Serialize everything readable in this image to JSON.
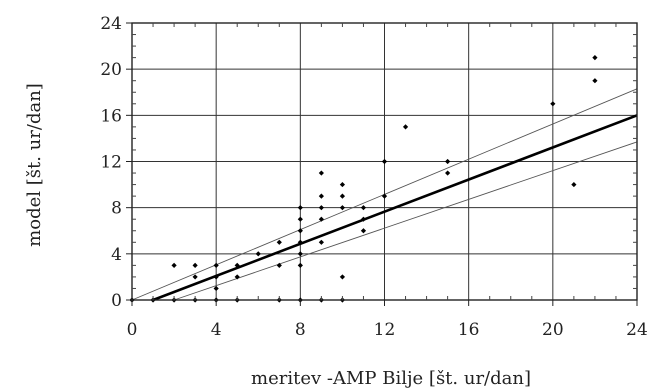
{
  "chart_data": {
    "type": "scatter",
    "xlabel": "meritev -AMP Bilje [št. ur/dan]",
    "ylabel": "model [št. ur/dan]",
    "xlim": [
      0,
      24
    ],
    "ylim": [
      0,
      24
    ],
    "x_ticks": [
      "0",
      "4",
      "8",
      "12",
      "16",
      "20",
      "24"
    ],
    "y_ticks": [
      "0",
      "4",
      "8",
      "12",
      "16",
      "20",
      "24"
    ],
    "grid": true,
    "points": [
      {
        "x": 0,
        "y": 0
      },
      {
        "x": 1,
        "y": 0
      },
      {
        "x": 2,
        "y": 0
      },
      {
        "x": 2,
        "y": 3
      },
      {
        "x": 3,
        "y": 0
      },
      {
        "x": 3,
        "y": 2
      },
      {
        "x": 3,
        "y": 3
      },
      {
        "x": 4,
        "y": 0
      },
      {
        "x": 4,
        "y": 1
      },
      {
        "x": 4,
        "y": 2
      },
      {
        "x": 4,
        "y": 3
      },
      {
        "x": 5,
        "y": 0
      },
      {
        "x": 5,
        "y": 2
      },
      {
        "x": 5,
        "y": 3
      },
      {
        "x": 6,
        "y": 4
      },
      {
        "x": 7,
        "y": 0
      },
      {
        "x": 7,
        "y": 3
      },
      {
        "x": 7,
        "y": 5
      },
      {
        "x": 8,
        "y": 0
      },
      {
        "x": 8,
        "y": 3
      },
      {
        "x": 8,
        "y": 4
      },
      {
        "x": 8,
        "y": 5
      },
      {
        "x": 8,
        "y": 6
      },
      {
        "x": 8,
        "y": 7
      },
      {
        "x": 8,
        "y": 8
      },
      {
        "x": 9,
        "y": 0
      },
      {
        "x": 9,
        "y": 5
      },
      {
        "x": 9,
        "y": 7
      },
      {
        "x": 9,
        "y": 8
      },
      {
        "x": 9,
        "y": 9
      },
      {
        "x": 9,
        "y": 11
      },
      {
        "x": 10,
        "y": 0
      },
      {
        "x": 10,
        "y": 2
      },
      {
        "x": 10,
        "y": 8
      },
      {
        "x": 10,
        "y": 9
      },
      {
        "x": 10,
        "y": 10
      },
      {
        "x": 11,
        "y": 6
      },
      {
        "x": 11,
        "y": 7
      },
      {
        "x": 11,
        "y": 8
      },
      {
        "x": 12,
        "y": 9
      },
      {
        "x": 12,
        "y": 12
      },
      {
        "x": 13,
        "y": 15
      },
      {
        "x": 15,
        "y": 11
      },
      {
        "x": 15,
        "y": 12
      },
      {
        "x": 20,
        "y": 17
      },
      {
        "x": 21,
        "y": 10
      },
      {
        "x": 22,
        "y": 19
      },
      {
        "x": 22,
        "y": 21
      }
    ],
    "regression_line": {
      "x": [
        1,
        24
      ],
      "y": [
        0,
        16
      ]
    },
    "confidence_upper": {
      "x": [
        0,
        24
      ],
      "y": [
        0,
        18.3
      ]
    },
    "confidence_lower": {
      "x": [
        2,
        24
      ],
      "y": [
        0,
        13.7
      ]
    }
  }
}
